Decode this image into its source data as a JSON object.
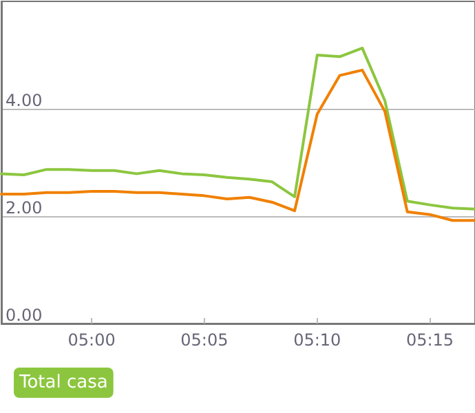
{
  "chart_data": {
    "type": "line",
    "x": [
      4.9333,
      4.95,
      4.9667,
      4.9833,
      5,
      5.0167,
      5.0333,
      5.05,
      5.0667,
      5.0833,
      5.1,
      5.1167,
      5.1333,
      5.15,
      5.1667,
      5.1833,
      5.2,
      5.2167,
      5.2333,
      5.25,
      5.2667,
      5.2833
    ],
    "series": [
      {
        "name": "Total casa",
        "color": "#8cc63f",
        "values": [
          2.79,
          2.77,
          2.87,
          2.87,
          2.85,
          2.85,
          2.79,
          2.85,
          2.79,
          2.77,
          2.72,
          2.69,
          2.64,
          2.36,
          5.0,
          4.97,
          5.13,
          4.15,
          2.28,
          2.21,
          2.15,
          2.13
        ]
      },
      {
        "color": "#f08000",
        "values": [
          2.41,
          2.41,
          2.44,
          2.44,
          2.46,
          2.46,
          2.44,
          2.44,
          2.41,
          2.38,
          2.32,
          2.35,
          2.26,
          2.1,
          3.9,
          4.62,
          4.72,
          3.95,
          2.08,
          2.03,
          1.92,
          1.92
        ]
      }
    ],
    "xlim": [
      4.9333,
      5.2833
    ],
    "xticks": [
      {
        "value": 5,
        "label": "05:00"
      },
      {
        "value": 5.0833,
        "label": "05:05"
      },
      {
        "value": 5.1667,
        "label": "05:10"
      },
      {
        "value": 5.25,
        "label": "05:15"
      }
    ],
    "ylim": [
      0,
      6
    ],
    "yticks": [
      {
        "value": 0,
        "label": "0.00"
      },
      {
        "value": 2,
        "label": "2.00"
      },
      {
        "value": 4,
        "label": "4.00"
      }
    ],
    "grid": "y",
    "legend": "bottom left",
    "marker": "none"
  }
}
